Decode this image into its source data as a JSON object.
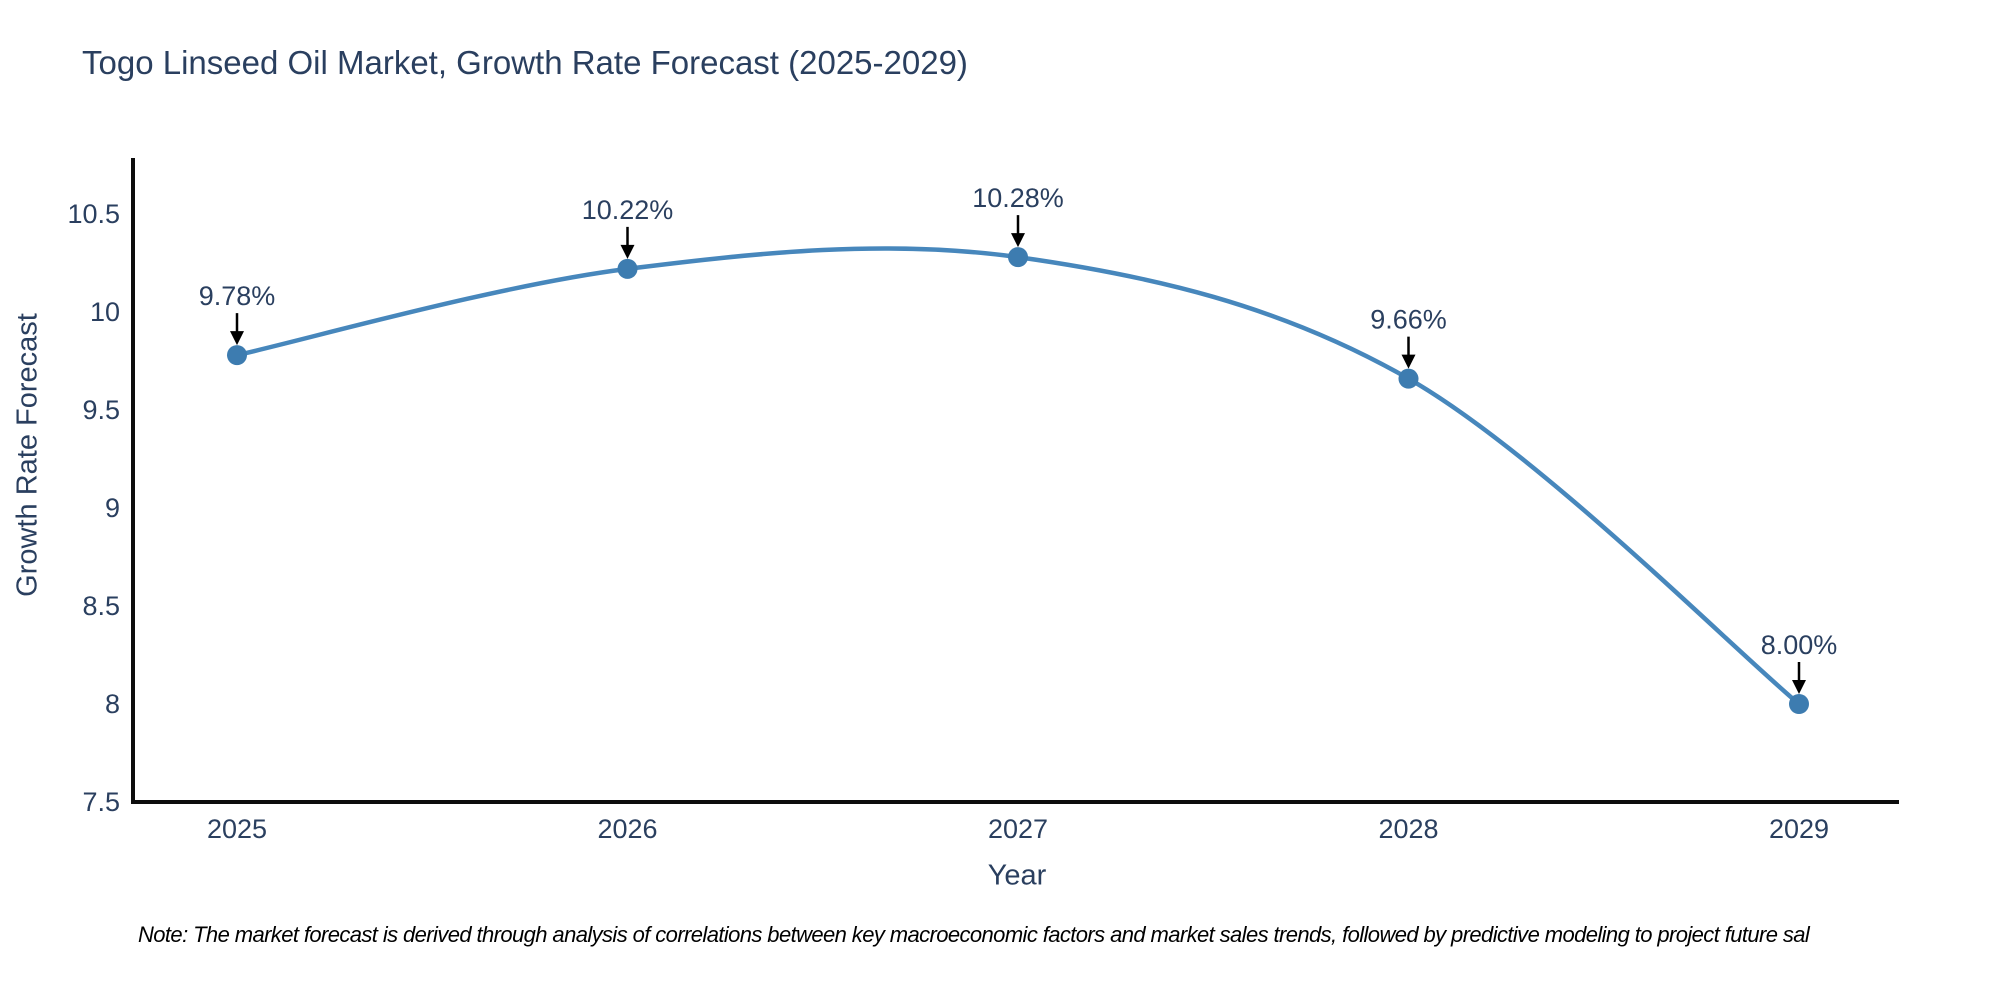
{
  "chart_data": {
    "type": "line",
    "title": "Togo Linseed Oil Market, Growth Rate Forecast (2025-2029)",
    "xlabel": "Year",
    "ylabel": "Growth Rate Forecast",
    "categories": [
      "2025",
      "2026",
      "2027",
      "2028",
      "2029"
    ],
    "series": [
      {
        "name": "Growth Rate Forecast",
        "values": [
          9.78,
          10.22,
          10.28,
          9.66,
          8.0
        ],
        "point_labels": [
          "9.78%",
          "10.22%",
          "10.28%",
          "9.66%",
          "8.00%"
        ]
      }
    ],
    "ylim": [
      7.5,
      10.5
    ],
    "yticks": [
      7.5,
      8,
      8.5,
      9,
      9.5,
      10,
      10.5
    ],
    "grid": false,
    "legend_position": "none",
    "line_shape": "spline",
    "colors": {
      "line": "#4787bc",
      "marker": "#3d7cb0",
      "axis": "#0d0d0d",
      "text": "#2a3f5f",
      "annotation_arrow": "#000000"
    }
  },
  "note": "Note: The market forecast is derived through analysis of correlations between key macroeconomic factors and market sales trends, followed by predictive modeling to project future sal"
}
